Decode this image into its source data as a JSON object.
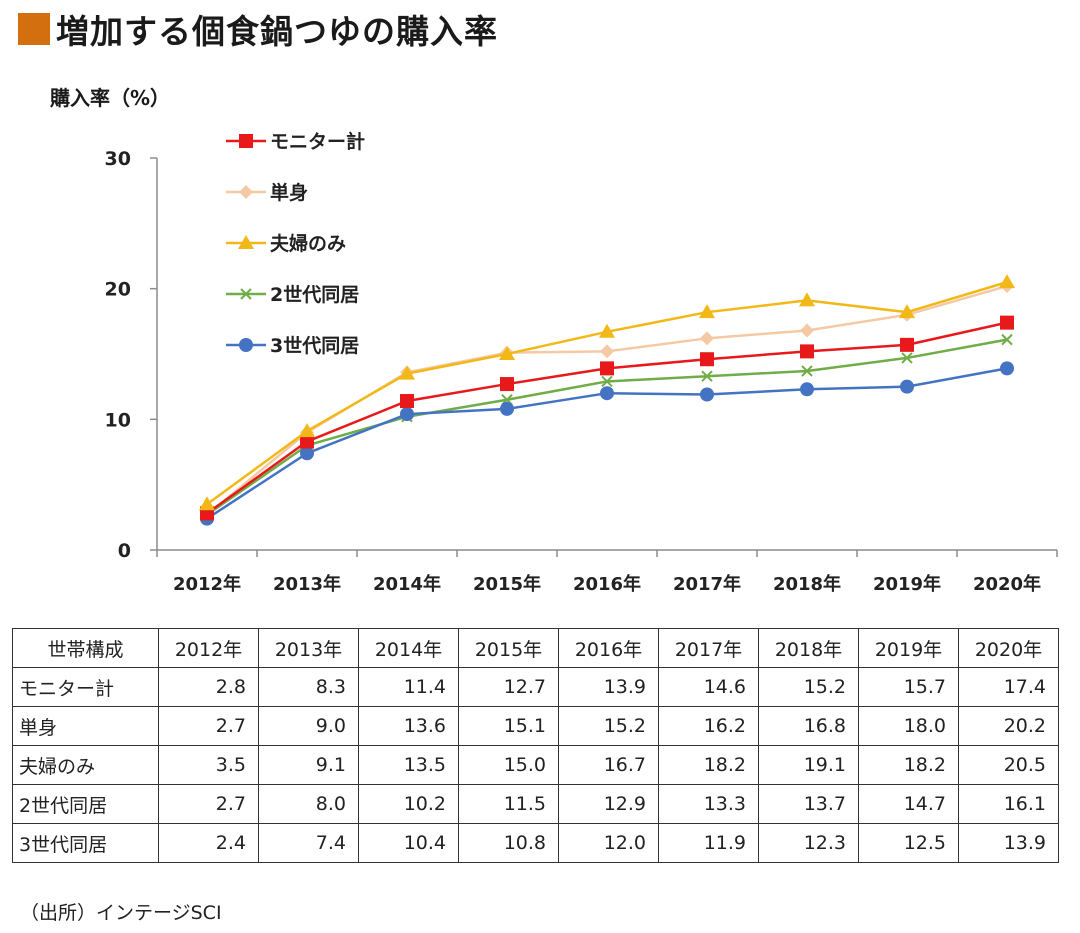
{
  "title": "増加する個食鍋つゆの購入率",
  "accent_color": "#d46f10",
  "source": "（出所）インテージSCI",
  "chart_data": {
    "type": "line",
    "title": "増加する個食鍋つゆの購入率",
    "ylabel": "購入率（%）",
    "xlabel": "",
    "ylim": [
      0,
      30
    ],
    "yticks": [
      0,
      10,
      20,
      30
    ],
    "grid": false,
    "legend_position": "top-left",
    "categories": [
      "2012年",
      "2013年",
      "2014年",
      "2015年",
      "2016年",
      "2017年",
      "2018年",
      "2019年",
      "2020年"
    ],
    "series": [
      {
        "name": "モニター計",
        "color": "#e8191b",
        "marker": "square",
        "values": [
          2.8,
          8.3,
          11.4,
          12.7,
          13.9,
          14.6,
          15.2,
          15.7,
          17.4
        ]
      },
      {
        "name": "単身",
        "color": "#f6c9a5",
        "marker": "diamond",
        "values": [
          2.7,
          9.0,
          13.6,
          15.1,
          15.2,
          16.2,
          16.8,
          18.0,
          20.2
        ]
      },
      {
        "name": "夫婦のみ",
        "color": "#f2b818",
        "marker": "triangle",
        "values": [
          3.5,
          9.1,
          13.5,
          15.0,
          16.7,
          18.2,
          19.1,
          18.2,
          20.5
        ]
      },
      {
        "name": "2世代同居",
        "color": "#70ac47",
        "marker": "x",
        "values": [
          2.7,
          8.0,
          10.2,
          11.5,
          12.9,
          13.3,
          13.7,
          14.7,
          16.1
        ]
      },
      {
        "name": "3世代同居",
        "color": "#4473c4",
        "marker": "circle",
        "values": [
          2.4,
          7.4,
          10.4,
          10.8,
          12.0,
          11.9,
          12.3,
          12.5,
          13.9
        ]
      }
    ]
  },
  "table": {
    "header_label": "世帯構成",
    "columns": [
      "2012年",
      "2013年",
      "2014年",
      "2015年",
      "2016年",
      "2017年",
      "2018年",
      "2019年",
      "2020年"
    ],
    "rows": [
      {
        "label": "モニター計",
        "cells": [
          "2.8",
          "8.3",
          "11.4",
          "12.7",
          "13.9",
          "14.6",
          "15.2",
          "15.7",
          "17.4"
        ]
      },
      {
        "label": "単身",
        "cells": [
          "2.7",
          "9.0",
          "13.6",
          "15.1",
          "15.2",
          "16.2",
          "16.8",
          "18.0",
          "20.2"
        ]
      },
      {
        "label": "夫婦のみ",
        "cells": [
          "3.5",
          "9.1",
          "13.5",
          "15.0",
          "16.7",
          "18.2",
          "19.1",
          "18.2",
          "20.5"
        ]
      },
      {
        "label": "2世代同居",
        "cells": [
          "2.7",
          "8.0",
          "10.2",
          "11.5",
          "12.9",
          "13.3",
          "13.7",
          "14.7",
          "16.1"
        ]
      },
      {
        "label": "3世代同居",
        "cells": [
          "2.4",
          "7.4",
          "10.4",
          "10.8",
          "12.0",
          "11.9",
          "12.3",
          "12.5",
          "13.9"
        ]
      }
    ]
  }
}
